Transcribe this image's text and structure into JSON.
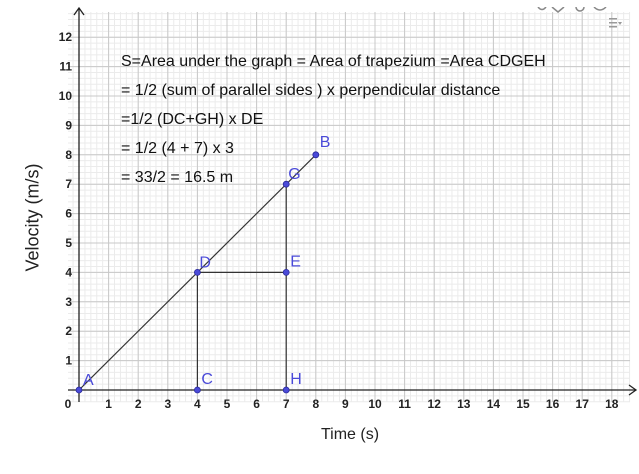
{
  "chart_data": {
    "type": "line",
    "xlabel": "Time (s)",
    "ylabel": "Velocity (m/s)",
    "xlim": [
      0,
      18
    ],
    "ylim": [
      0,
      12
    ],
    "x_ticks": [
      "0",
      "1",
      "2",
      "3",
      "4",
      "5",
      "6",
      "7",
      "8",
      "9",
      "10",
      "11",
      "12",
      "13",
      "14",
      "15",
      "16",
      "17",
      "18"
    ],
    "y_ticks": [
      "1",
      "2",
      "3",
      "4",
      "5",
      "6",
      "7",
      "8",
      "9",
      "10",
      "11",
      "12"
    ],
    "grid": true,
    "points": [
      {
        "name": "A",
        "x": 0,
        "y": 0
      },
      {
        "name": "B",
        "x": 8,
        "y": 8
      },
      {
        "name": "C",
        "x": 4,
        "y": 0
      },
      {
        "name": "D",
        "x": 4,
        "y": 4
      },
      {
        "name": "E",
        "x": 7,
        "y": 4
      },
      {
        "name": "G",
        "x": 7,
        "y": 7
      },
      {
        "name": "H",
        "x": 7,
        "y": 0
      }
    ],
    "segments": [
      [
        "A",
        "B"
      ],
      [
        "D",
        "C"
      ],
      [
        "D",
        "E"
      ],
      [
        "G",
        "H"
      ]
    ],
    "annotations": [
      "S=Area under the graph = Area of trapezium =Area CDGEH",
      "= 1/2 (sum of parallel sides ) x perpendicular distance",
      "=1/2 (DC+GH) x DE",
      "= 1/2 (4 + 7) x 3",
      "= 33/2 = 16.5 m"
    ],
    "colors": {
      "point": "#4a4ad8",
      "label": "#4a4ad8",
      "line": "#333333",
      "grid_major": "#c8c8c8",
      "grid_minor": "#ebebeb"
    }
  }
}
